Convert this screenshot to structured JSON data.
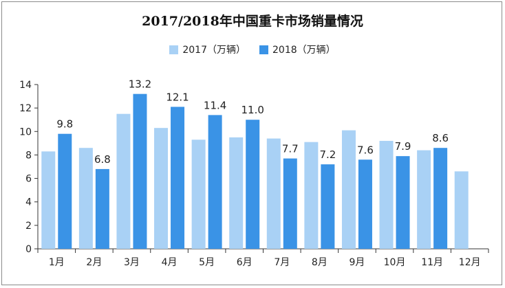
{
  "chart_data": {
    "type": "bar",
    "title": "2017/2018年中国重卡市场销量情况",
    "categories": [
      "1月",
      "2月",
      "3月",
      "4月",
      "5月",
      "6月",
      "7月",
      "8月",
      "9月",
      "10月",
      "11月",
      "12月"
    ],
    "series": [
      {
        "name": "2017（万辆）",
        "color": "#a9d1f5",
        "values": [
          8.3,
          8.6,
          11.5,
          10.3,
          9.3,
          9.5,
          9.4,
          9.1,
          10.1,
          9.2,
          8.4,
          6.6
        ]
      },
      {
        "name": "2018（万辆）",
        "color": "#3a93e6",
        "values": [
          9.8,
          6.8,
          13.2,
          12.1,
          11.4,
          11.0,
          7.7,
          7.2,
          7.6,
          7.9,
          8.6,
          null
        ],
        "labels": [
          "9.8",
          "6.8",
          "13.2",
          "12.1",
          "11.4",
          "11.0",
          "7.7",
          "7.2",
          "7.6",
          "7.9",
          "8.6",
          ""
        ]
      }
    ],
    "ylim": [
      0,
      14
    ],
    "yticks": [
      0,
      2,
      4,
      6,
      8,
      10,
      12,
      14
    ],
    "ytick_labels": [
      "0",
      "2",
      "4",
      "6",
      "8",
      "10",
      "12",
      "14"
    ],
    "xlabel": "",
    "ylabel": "",
    "grid": false,
    "legend_position": "top"
  }
}
